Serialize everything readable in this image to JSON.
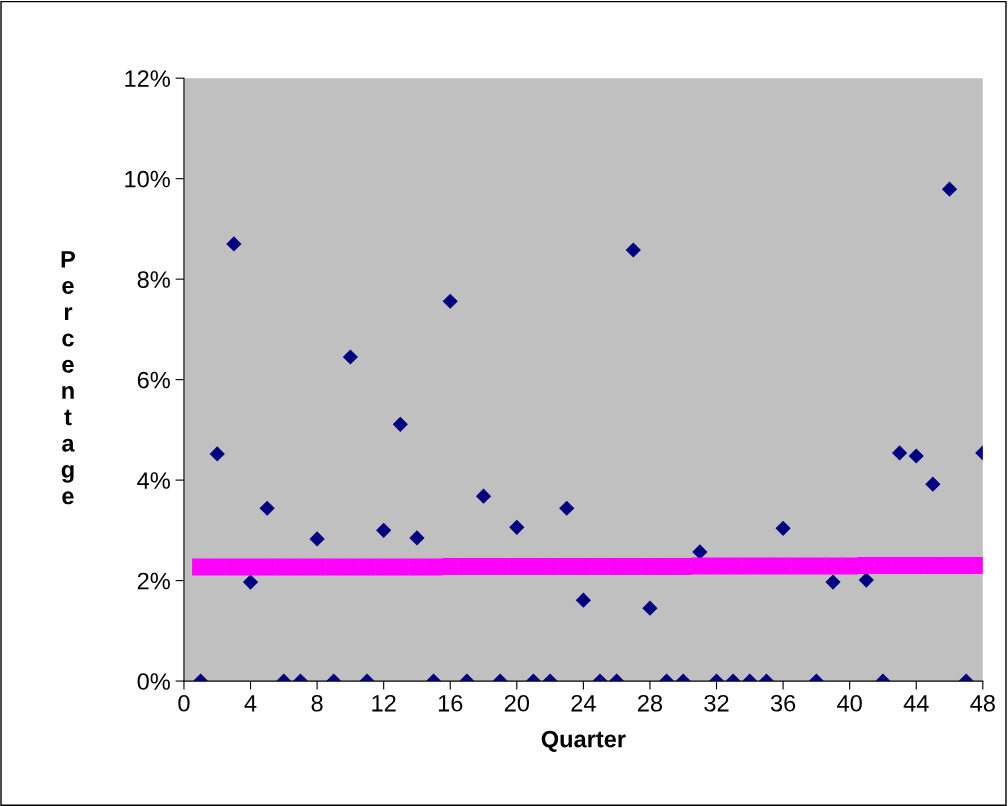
{
  "chart_data": {
    "type": "scatter",
    "xlabel": "Quarter",
    "ylabel": "Percentage",
    "xlim": [
      0,
      48
    ],
    "xticks": [
      0,
      4,
      8,
      12,
      16,
      20,
      24,
      28,
      32,
      36,
      40,
      44,
      48
    ],
    "ylim": [
      0,
      12
    ],
    "yticks": [
      {
        "value": 0,
        "label": "0%"
      },
      {
        "value": 2,
        "label": "2%"
      },
      {
        "value": 4,
        "label": "4%"
      },
      {
        "value": 6,
        "label": "6%"
      },
      {
        "value": 8,
        "label": "8%"
      },
      {
        "value": 10,
        "label": "10%"
      },
      {
        "value": 12,
        "label": "12%"
      }
    ],
    "grid": false,
    "legend": false,
    "x": [
      1,
      2,
      3,
      4,
      5,
      6,
      7,
      8,
      9,
      10,
      11,
      12,
      13,
      14,
      15,
      16,
      17,
      18,
      19,
      20,
      21,
      22,
      23,
      24,
      25,
      26,
      27,
      28,
      29,
      30,
      31,
      32,
      33,
      34,
      35,
      36,
      37,
      38,
      39,
      40,
      41,
      42,
      43,
      44,
      45,
      46,
      47,
      48
    ],
    "series": [
      {
        "color": "#000080",
        "marker": "diamond",
        "values": [
          0,
          4.52,
          8.7,
          1.97,
          3.44,
          0,
          0,
          2.83,
          0,
          6.45,
          0,
          3.0,
          5.11,
          2.85,
          0,
          7.56,
          0,
          3.68,
          0,
          3.06,
          0,
          0,
          3.44,
          1.61,
          0,
          0,
          8.58,
          1.45,
          0,
          0,
          2.57,
          0,
          0,
          0,
          0,
          3.04,
          null,
          0,
          1.97,
          null,
          2.01,
          0,
          4.54,
          4.48,
          3.92,
          9.79,
          0,
          4.54
        ]
      },
      {
        "color": "#ff00ff",
        "marker": "square",
        "values": [
          2.27,
          2.27,
          2.27,
          2.27,
          2.27,
          2.27,
          2.27,
          2.27,
          2.27,
          2.27,
          2.27,
          2.27,
          2.27,
          2.27,
          2.27,
          2.28,
          2.28,
          2.28,
          2.28,
          2.28,
          2.28,
          2.28,
          2.28,
          2.28,
          2.28,
          2.28,
          2.28,
          2.28,
          2.28,
          2.28,
          2.29,
          2.29,
          2.29,
          2.29,
          2.29,
          2.29,
          2.29,
          2.29,
          2.29,
          2.29,
          2.3,
          2.3,
          2.3,
          2.3,
          2.3,
          2.3,
          2.3,
          2.3
        ]
      }
    ]
  }
}
